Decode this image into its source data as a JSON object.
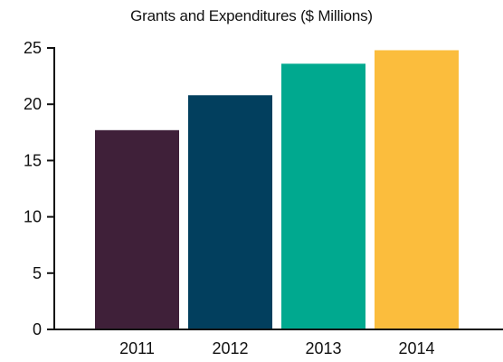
{
  "chart_data": {
    "type": "bar",
    "title": "Grants and Expenditures ($ Millions)",
    "categories": [
      "2011",
      "2012",
      "2013",
      "2014"
    ],
    "values": [
      17.7,
      20.8,
      23.6,
      24.8
    ],
    "colors": [
      "#3f2039",
      "#023f5e",
      "#00a98f",
      "#fbbd3d"
    ],
    "ylim": [
      0,
      25
    ],
    "yticks": [
      0,
      5,
      10,
      15,
      20,
      25
    ],
    "xlabel": "",
    "ylabel": "",
    "grid": false,
    "legend": "none"
  }
}
